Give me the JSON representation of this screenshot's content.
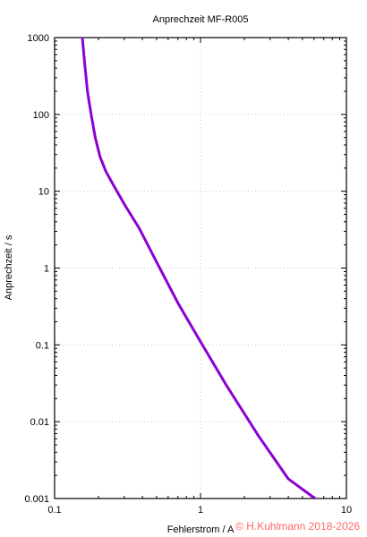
{
  "chart_data": {
    "type": "line",
    "title": "Anprechzeit MF-R005",
    "xlabel": "Fehlerstrom / A",
    "ylabel": "Anprechzeit / s",
    "xscale": "log",
    "yscale": "log",
    "xlim": [
      0.1,
      10
    ],
    "ylim": [
      0.001,
      1000
    ],
    "x_ticks": [
      0.1,
      1,
      10
    ],
    "x_tick_labels": [
      "0.1",
      "1",
      "10"
    ],
    "y_ticks": [
      0.001,
      0.01,
      0.1,
      1,
      10,
      100,
      1000
    ],
    "y_tick_labels": [
      "0.001",
      "0.01",
      "0.1",
      "1",
      "10",
      "100",
      "1000"
    ],
    "grid": true,
    "series": [
      {
        "color": "#8b00d4",
        "x": [
          0.155,
          0.16,
          0.168,
          0.178,
          0.19,
          0.205,
          0.225,
          0.25,
          0.3,
          0.38,
          0.5,
          0.7,
          1.0,
          1.5,
          2.5,
          4.0,
          6.1
        ],
        "y": [
          1000,
          500,
          200,
          100,
          50,
          28,
          18,
          12.5,
          6.8,
          3.3,
          1.2,
          0.35,
          0.11,
          0.03,
          0.0065,
          0.0018,
          0.001
        ]
      }
    ]
  },
  "watermark": "© H.Kuhlmann 2018-2026"
}
